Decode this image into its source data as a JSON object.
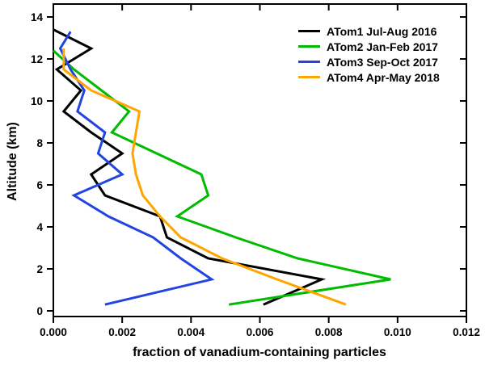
{
  "chart_data": {
    "type": "line",
    "title": "",
    "xlabel": "fraction of vanadium-containing particles",
    "ylabel": "Altitude (km)",
    "xlim": [
      0,
      0.012
    ],
    "ylim": [
      0,
      14
    ],
    "xticks": [
      0,
      0.002,
      0.004,
      0.006,
      0.008,
      0.01,
      0.012
    ],
    "xtick_labels": [
      "0.000",
      "0.002",
      "0.004",
      "0.006",
      "0.008",
      "0.010",
      "0.012"
    ],
    "yticks": [
      0,
      2,
      4,
      6,
      8,
      10,
      12,
      14
    ],
    "grid": false,
    "legend_position": "top-right",
    "axis_color": "#000000",
    "series": [
      {
        "name": "ATom1 Jul-Aug 2016",
        "color": "#000000",
        "points": [
          [
            0.0061,
            0.3
          ],
          [
            0.0078,
            1.5
          ],
          [
            0.0045,
            2.5
          ],
          [
            0.0033,
            3.5
          ],
          [
            0.0031,
            4.5
          ],
          [
            0.0015,
            5.5
          ],
          [
            0.0011,
            6.5
          ],
          [
            0.002,
            7.5
          ],
          [
            0.0011,
            8.5
          ],
          [
            0.0003,
            9.5
          ],
          [
            0.0008,
            10.5
          ],
          [
            0.0001,
            11.5
          ],
          [
            0.0011,
            12.5
          ],
          [
            0.0,
            13.4
          ]
        ]
      },
      {
        "name": "ATom2 Jan-Feb 2017",
        "color": "#00bb00",
        "points": [
          [
            0.0051,
            0.3
          ],
          [
            0.0098,
            1.5
          ],
          [
            0.0071,
            2.5
          ],
          [
            0.0053,
            3.5
          ],
          [
            0.0036,
            4.5
          ],
          [
            0.0045,
            5.5
          ],
          [
            0.0043,
            6.5
          ],
          [
            0.003,
            7.5
          ],
          [
            0.0017,
            8.5
          ],
          [
            0.0022,
            9.5
          ],
          [
            0.0014,
            10.5
          ],
          [
            0.0006,
            11.5
          ],
          [
            0.0,
            12.4
          ]
        ]
      },
      {
        "name": "ATom3 Sep-Oct 2017",
        "color": "#2244e0",
        "points": [
          [
            0.0015,
            0.3
          ],
          [
            0.0046,
            1.5
          ],
          [
            0.0037,
            2.5
          ],
          [
            0.0029,
            3.5
          ],
          [
            0.0016,
            4.5
          ],
          [
            0.0006,
            5.5
          ],
          [
            0.002,
            6.5
          ],
          [
            0.0013,
            7.5
          ],
          [
            0.0015,
            8.5
          ],
          [
            0.0007,
            9.5
          ],
          [
            0.0009,
            10.5
          ],
          [
            0.0005,
            11.5
          ],
          [
            0.0002,
            12.5
          ],
          [
            0.0005,
            13.3
          ]
        ]
      },
      {
        "name": "ATom4 Apr-May 2018",
        "color": "#ffa500",
        "points": [
          [
            0.0085,
            0.3
          ],
          [
            0.0065,
            1.5
          ],
          [
            0.0049,
            2.5
          ],
          [
            0.0037,
            3.5
          ],
          [
            0.0031,
            4.5
          ],
          [
            0.0026,
            5.5
          ],
          [
            0.0024,
            6.5
          ],
          [
            0.0023,
            7.5
          ],
          [
            0.0024,
            8.5
          ],
          [
            0.0025,
            9.5
          ],
          [
            0.0011,
            10.5
          ],
          [
            0.0003,
            11.5
          ],
          [
            0.0003,
            12.5
          ]
        ]
      }
    ]
  }
}
